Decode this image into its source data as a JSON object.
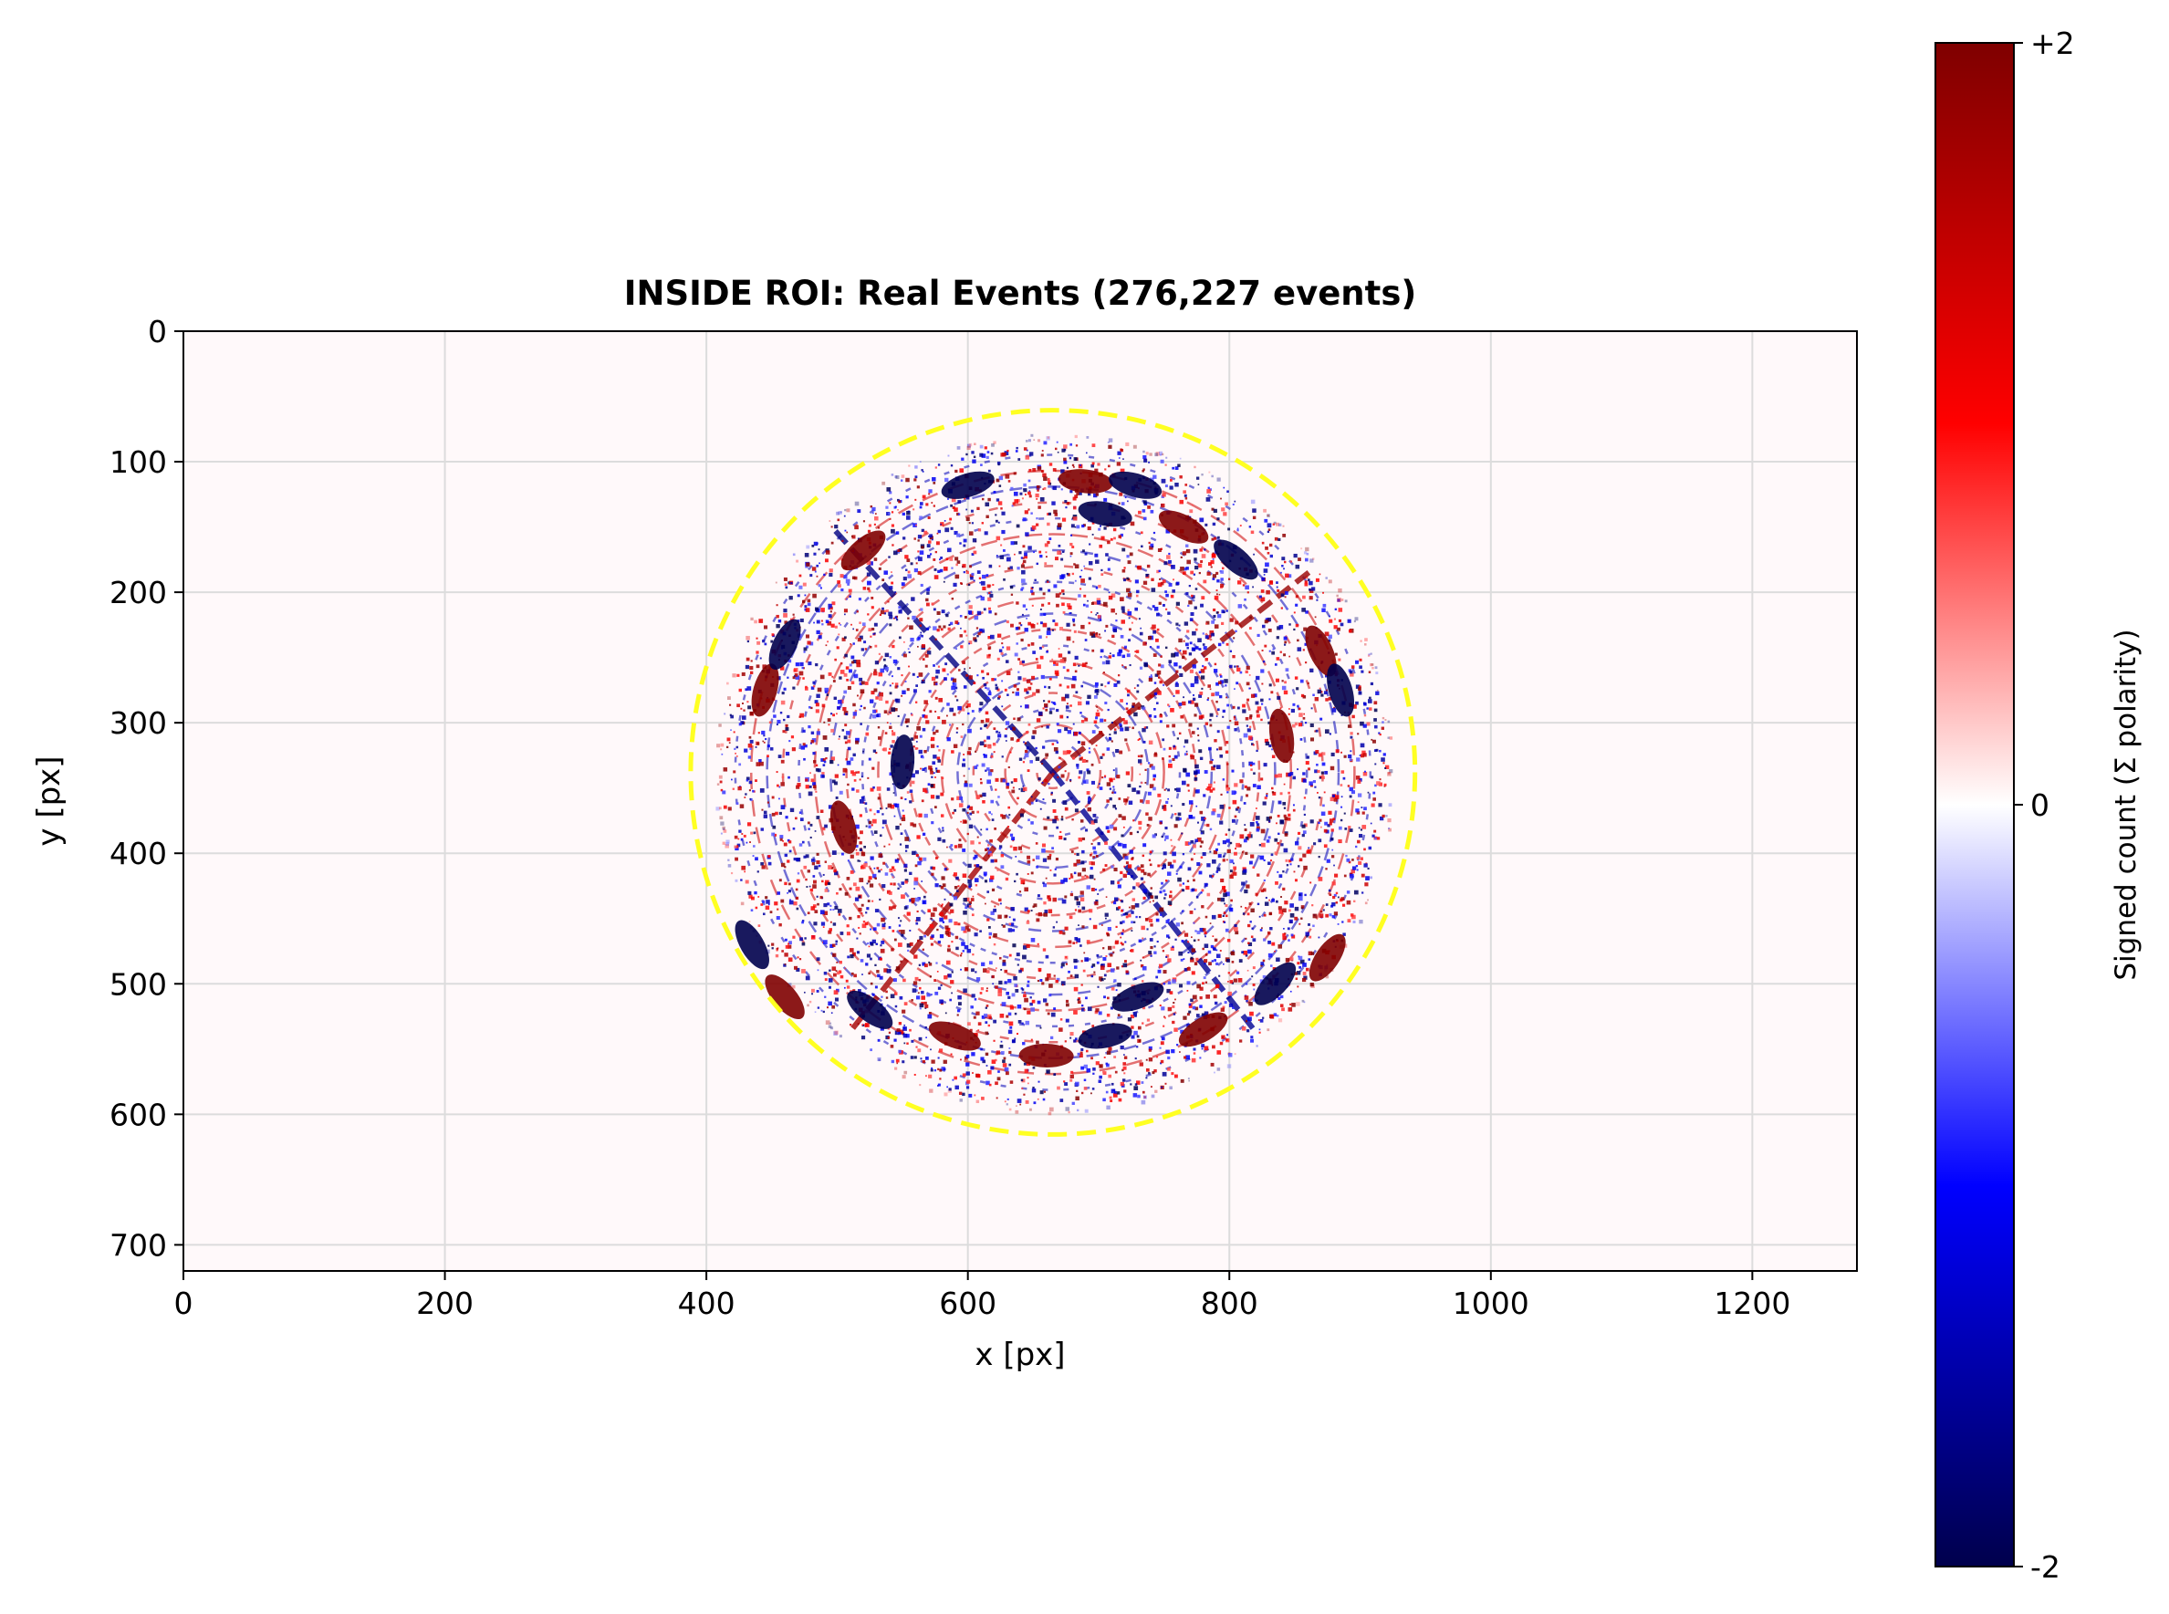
{
  "chart_data": {
    "type": "heatmap",
    "title": "INSIDE ROI: Real Events (276,227 events)",
    "xlabel": "x [px]",
    "ylabel": "y [px]",
    "xlim": [
      0,
      1280
    ],
    "ylim": [
      720,
      0
    ],
    "xticks": [
      0,
      200,
      400,
      600,
      800,
      1000,
      1200
    ],
    "yticks": [
      0,
      100,
      200,
      300,
      400,
      500,
      600,
      700
    ],
    "xtick_labels": [
      "0",
      "200",
      "400",
      "600",
      "800",
      "1000",
      "1200"
    ],
    "ytick_labels": [
      "0",
      "100",
      "200",
      "300",
      "400",
      "500",
      "600",
      "700"
    ],
    "grid": true,
    "background_color": "#fff9fa",
    "roi_circle": {
      "center": [
        665,
        338
      ],
      "radius": 277,
      "style": "dashed",
      "color": "#ffff22"
    },
    "event_disk": {
      "center": [
        665,
        338
      ],
      "radius": 255
    },
    "colorbar": {
      "label": "Signed count (Σ polarity)",
      "min": -2,
      "max": 2,
      "ticks": [
        2,
        0,
        -2
      ],
      "tick_labels": [
        "+2",
        "0",
        "-2"
      ],
      "colormap": "seismic",
      "colors": [
        "#00004c",
        "#0000ff",
        "#ffffff",
        "#ff0000",
        "#7f0000"
      ]
    },
    "notable_clusters": [
      {
        "x": 600,
        "y": 118,
        "polarity": -2
      },
      {
        "x": 690,
        "y": 115,
        "polarity": 2
      },
      {
        "x": 728,
        "y": 118,
        "polarity": -2
      },
      {
        "x": 705,
        "y": 140,
        "polarity": -2
      },
      {
        "x": 765,
        "y": 150,
        "polarity": 2
      },
      {
        "x": 805,
        "y": 175,
        "polarity": -2
      },
      {
        "x": 870,
        "y": 245,
        "polarity": 2
      },
      {
        "x": 885,
        "y": 275,
        "polarity": -2
      },
      {
        "x": 840,
        "y": 310,
        "polarity": 2
      },
      {
        "x": 445,
        "y": 275,
        "polarity": 2
      },
      {
        "x": 460,
        "y": 240,
        "polarity": -2
      },
      {
        "x": 520,
        "y": 168,
        "polarity": 2
      },
      {
        "x": 505,
        "y": 380,
        "polarity": 2
      },
      {
        "x": 460,
        "y": 510,
        "polarity": 2
      },
      {
        "x": 525,
        "y": 520,
        "polarity": -2
      },
      {
        "x": 590,
        "y": 540,
        "polarity": 2
      },
      {
        "x": 660,
        "y": 555,
        "polarity": 2
      },
      {
        "x": 705,
        "y": 540,
        "polarity": -2
      },
      {
        "x": 730,
        "y": 510,
        "polarity": -2
      },
      {
        "x": 780,
        "y": 535,
        "polarity": 2
      },
      {
        "x": 835,
        "y": 500,
        "polarity": -2
      },
      {
        "x": 875,
        "y": 480,
        "polarity": 2
      },
      {
        "x": 435,
        "y": 470,
        "polarity": -2
      },
      {
        "x": 550,
        "y": 330,
        "polarity": -2
      }
    ]
  }
}
